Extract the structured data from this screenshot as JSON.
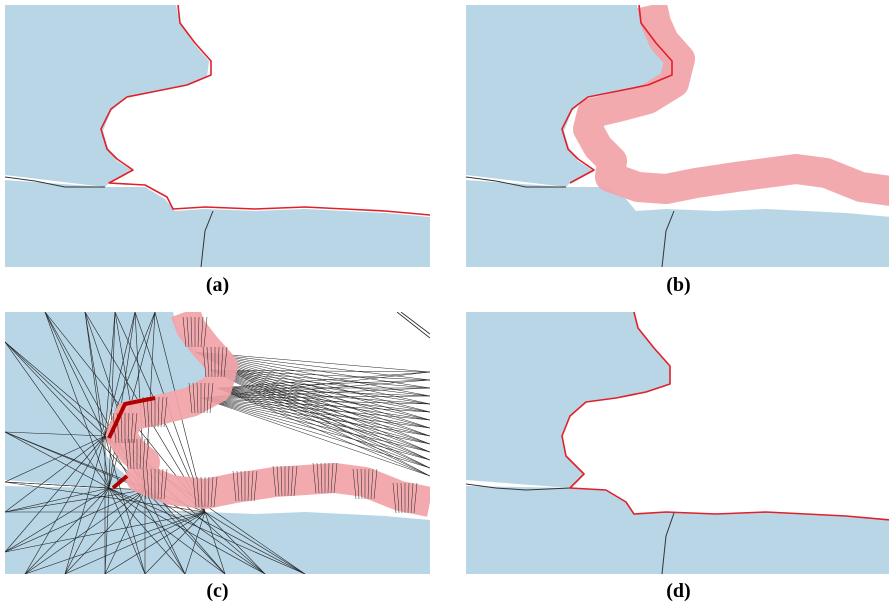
{
  "colors": {
    "land": "#b8d6e6",
    "coast_red": "#e0202a",
    "buffer": "#f2a3a8",
    "buffer_edge": "#e88c92",
    "border": "#333333",
    "triangulation": "#222222",
    "highlight": "#b00000"
  },
  "panels": [
    {
      "id": "a",
      "label": "(a)"
    },
    {
      "id": "b",
      "label": "(b)"
    },
    {
      "id": "c",
      "label": "(c)"
    },
    {
      "id": "d",
      "label": "(d)"
    }
  ]
}
